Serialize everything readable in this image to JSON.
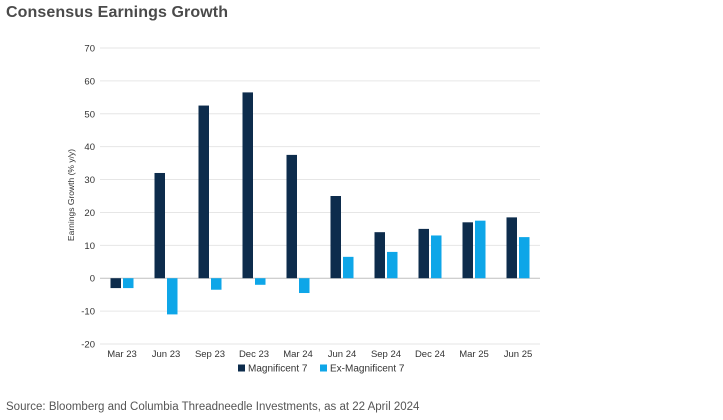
{
  "title": "Consensus Earnings Growth",
  "source": "Source: Bloomberg and Columbia Threadneedle Investments, as at 22 April 2024",
  "chart_data": {
    "type": "bar",
    "categories": [
      "Mar 23",
      "Jun 23",
      "Sep 23",
      "Dec 23",
      "Mar 24",
      "Jun 24",
      "Sep 24",
      "Dec 24",
      "Mar 25",
      "Jun 25"
    ],
    "series": [
      {
        "name": "Magnificent 7",
        "color": "#0d2c4c",
        "values": [
          -3,
          32,
          52.5,
          56.5,
          37.5,
          25,
          14,
          15,
          17,
          18.5
        ]
      },
      {
        "name": "Ex-Magnificent 7",
        "color": "#0ea6e8",
        "values": [
          -3,
          -11,
          -3.5,
          -2,
          -4.5,
          6.5,
          8,
          13,
          17.5,
          12.5
        ]
      }
    ],
    "ylabel": "Earnings Growth (% y/y)",
    "xlabel": "",
    "ylim": [
      -20,
      70
    ],
    "yticks": [
      70,
      60,
      50,
      40,
      30,
      20,
      10,
      0,
      -10,
      -20
    ],
    "grid": true,
    "legend_position": "bottom"
  }
}
